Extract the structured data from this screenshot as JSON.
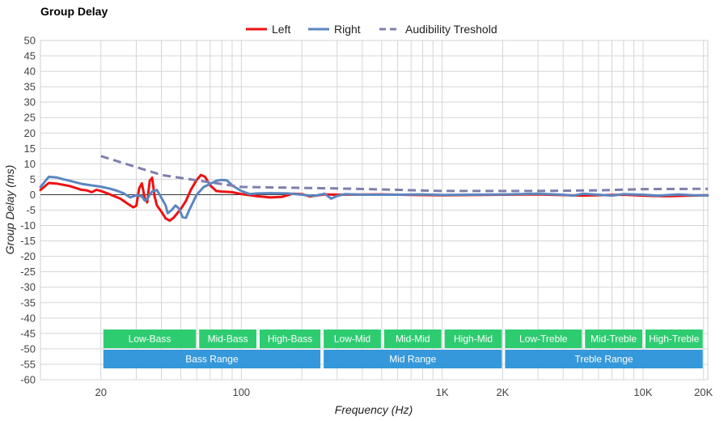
{
  "chart_data": {
    "type": "line",
    "title": "Group Delay",
    "xlabel": "Frequency (Hz)",
    "ylabel": "Group Delay (ms)",
    "x_scale": "log",
    "xlim": [
      10,
      21000
    ],
    "ylim": [
      -60,
      50
    ],
    "yticks": [
      50,
      45,
      40,
      35,
      30,
      25,
      20,
      15,
      10,
      5,
      0,
      -5,
      -10,
      -15,
      -20,
      -25,
      -30,
      -35,
      -40,
      -45,
      -50,
      -55,
      -60
    ],
    "xticks": [
      {
        "value": 20,
        "label": "20"
      },
      {
        "value": 100,
        "label": "100"
      },
      {
        "value": 1000,
        "label": "1K"
      },
      {
        "value": 2000,
        "label": "2K"
      },
      {
        "value": 10000,
        "label": "10K"
      },
      {
        "value": 20000,
        "label": "20K"
      }
    ],
    "grid": true,
    "legend_position": "top-center",
    "series": [
      {
        "name": "Left",
        "color": "#ee1111",
        "style": "solid",
        "points": [
          [
            10,
            1.5
          ],
          [
            11,
            3.8
          ],
          [
            12,
            3.6
          ],
          [
            14,
            2.8
          ],
          [
            16,
            1.6
          ],
          [
            17,
            1.4
          ],
          [
            18,
            0.8
          ],
          [
            19,
            1.6
          ],
          [
            20,
            1.2
          ],
          [
            22,
            0.2
          ],
          [
            25,
            -1.3
          ],
          [
            27,
            -2.8
          ],
          [
            29,
            -4.1
          ],
          [
            30,
            -3.6
          ],
          [
            31,
            2
          ],
          [
            32,
            3.7
          ],
          [
            33,
            -1
          ],
          [
            34,
            -2.5
          ],
          [
            35,
            4.5
          ],
          [
            36,
            5.5
          ],
          [
            37,
            -0.5
          ],
          [
            38,
            -3.5
          ],
          [
            40,
            -5.5
          ],
          [
            42,
            -7.7
          ],
          [
            44,
            -8.4
          ],
          [
            46,
            -7.5
          ],
          [
            48,
            -6
          ],
          [
            50,
            -4.6
          ],
          [
            53,
            -2
          ],
          [
            56,
            1.5
          ],
          [
            60,
            4.8
          ],
          [
            63,
            6.4
          ],
          [
            66,
            5.8
          ],
          [
            70,
            3
          ],
          [
            75,
            1.2
          ],
          [
            80,
            1
          ],
          [
            90,
            0.8
          ],
          [
            100,
            0.2
          ],
          [
            120,
            -0.5
          ],
          [
            140,
            -0.9
          ],
          [
            160,
            -0.7
          ],
          [
            180,
            0.3
          ],
          [
            200,
            0.2
          ],
          [
            220,
            -0.6
          ],
          [
            260,
            0.1
          ],
          [
            300,
            0
          ],
          [
            500,
            0.1
          ],
          [
            700,
            -0.1
          ],
          [
            1000,
            -0.2
          ],
          [
            2000,
            0
          ],
          [
            3000,
            0.1
          ],
          [
            5000,
            -0.3
          ],
          [
            8000,
            0
          ],
          [
            10000,
            -0.3
          ],
          [
            13000,
            -0.5
          ],
          [
            17000,
            -0.3
          ],
          [
            20000,
            -0.2
          ],
          [
            21000,
            -0.2
          ]
        ]
      },
      {
        "name": "Right",
        "color": "#5b87bf",
        "style": "solid",
        "points": [
          [
            10,
            2.5
          ],
          [
            11,
            5.8
          ],
          [
            12,
            5.6
          ],
          [
            13,
            5
          ],
          [
            14,
            4.5
          ],
          [
            16,
            3.5
          ],
          [
            18,
            3.0
          ],
          [
            20,
            2.6
          ],
          [
            22,
            2.0
          ],
          [
            24,
            1.3
          ],
          [
            26,
            0.4
          ],
          [
            28,
            -0.9
          ],
          [
            30,
            -0.2
          ],
          [
            32,
            -0.5
          ],
          [
            33,
            -1.9
          ],
          [
            34,
            -1.5
          ],
          [
            35,
            0
          ],
          [
            36,
            1
          ],
          [
            38,
            1.5
          ],
          [
            40,
            -1
          ],
          [
            42,
            -3.5
          ],
          [
            43,
            -6
          ],
          [
            45,
            -5
          ],
          [
            47,
            -3.5
          ],
          [
            49,
            -4.5
          ],
          [
            51,
            -7.3
          ],
          [
            53,
            -7.5
          ],
          [
            55,
            -5
          ],
          [
            60,
            0
          ],
          [
            65,
            2.5
          ],
          [
            70,
            3.5
          ],
          [
            75,
            4.5
          ],
          [
            80,
            4.8
          ],
          [
            85,
            4.6
          ],
          [
            90,
            3
          ],
          [
            100,
            1.2
          ],
          [
            110,
            0.2
          ],
          [
            120,
            0.4
          ],
          [
            140,
            0.5
          ],
          [
            170,
            0.4
          ],
          [
            200,
            0
          ],
          [
            230,
            -0.4
          ],
          [
            260,
            0.3
          ],
          [
            280,
            -1.3
          ],
          [
            300,
            -0.4
          ],
          [
            330,
            0.2
          ],
          [
            400,
            0
          ],
          [
            600,
            0
          ],
          [
            800,
            0.1
          ],
          [
            1000,
            -0.1
          ],
          [
            2000,
            0.1
          ],
          [
            3000,
            0.3
          ],
          [
            4000,
            0
          ],
          [
            4500,
            -0.3
          ],
          [
            5000,
            0.3
          ],
          [
            6000,
            0
          ],
          [
            7000,
            -0.3
          ],
          [
            8000,
            0.2
          ],
          [
            10000,
            0
          ],
          [
            12000,
            -0.3
          ],
          [
            15000,
            0.1
          ],
          [
            18000,
            -0.2
          ],
          [
            20000,
            -0.2
          ],
          [
            21000,
            -0.2
          ]
        ]
      },
      {
        "name": "Audibility Treshold",
        "color": "#7f7fae",
        "style": "dashed",
        "points": [
          [
            20,
            12.5
          ],
          [
            40,
            6.4
          ],
          [
            70,
            4
          ],
          [
            100,
            2.5
          ],
          [
            300,
            2
          ],
          [
            500,
            1.7
          ],
          [
            1000,
            1.2
          ],
          [
            3000,
            1.2
          ],
          [
            6000,
            1.4
          ],
          [
            10000,
            1.8
          ],
          [
            21000,
            1.9
          ]
        ]
      }
    ],
    "bands": [
      {
        "label": "Low-Bass",
        "row": 1,
        "from": 20,
        "to": 60,
        "color": "#2ecc71"
      },
      {
        "label": "Mid-Bass",
        "row": 1,
        "from": 60,
        "to": 120,
        "color": "#2ecc71"
      },
      {
        "label": "High-Bass",
        "row": 1,
        "from": 120,
        "to": 250,
        "color": "#2ecc71"
      },
      {
        "label": "Low-Mid",
        "row": 1,
        "from": 250,
        "to": 500,
        "color": "#2ecc71"
      },
      {
        "label": "Mid-Mid",
        "row": 1,
        "from": 500,
        "to": 1000,
        "color": "#2ecc71"
      },
      {
        "label": "High-Mid",
        "row": 1,
        "from": 1000,
        "to": 2000,
        "color": "#2ecc71"
      },
      {
        "label": "Low-Treble",
        "row": 1,
        "from": 2000,
        "to": 5000,
        "color": "#2ecc71"
      },
      {
        "label": "Mid-Treble",
        "row": 1,
        "from": 5000,
        "to": 10000,
        "color": "#2ecc71"
      },
      {
        "label": "High-Treble",
        "row": 1,
        "from": 10000,
        "to": 20000,
        "color": "#2ecc71"
      },
      {
        "label": "Bass Range",
        "row": 2,
        "from": 20,
        "to": 250,
        "color": "#3498db"
      },
      {
        "label": "Mid Range",
        "row": 2,
        "from": 250,
        "to": 2000,
        "color": "#3498db"
      },
      {
        "label": "Treble Range",
        "row": 2,
        "from": 2000,
        "to": 20000,
        "color": "#3498db"
      }
    ]
  }
}
